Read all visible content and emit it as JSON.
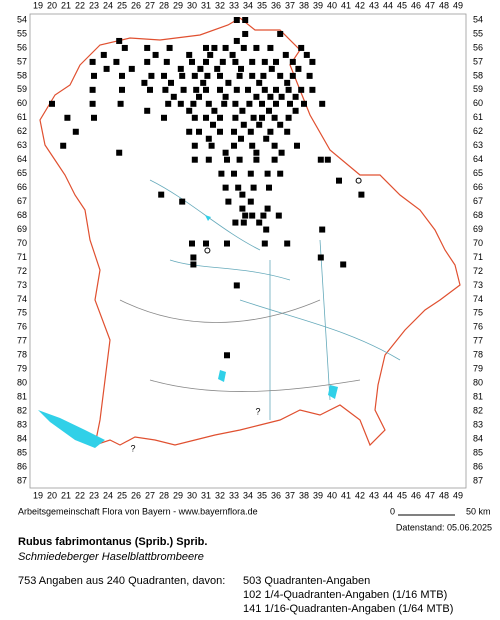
{
  "map": {
    "columns": [
      19,
      20,
      21,
      22,
      23,
      24,
      25,
      26,
      27,
      28,
      29,
      30,
      31,
      32,
      33,
      34,
      35,
      36,
      37,
      38,
      39,
      40,
      41,
      42,
      43,
      44,
      45,
      46,
      47,
      48,
      49
    ],
    "rows": [
      54,
      55,
      56,
      57,
      58,
      59,
      60,
      61,
      62,
      63,
      64,
      65,
      66,
      67,
      68,
      69,
      70,
      71,
      72,
      73,
      74,
      75,
      76,
      77,
      78,
      79,
      80,
      81,
      82,
      83,
      84,
      85,
      86,
      87
    ],
    "records": [
      [
        33.2,
        54
      ],
      [
        33.8,
        54
      ],
      [
        33.8,
        55
      ],
      [
        36.3,
        55
      ],
      [
        24.8,
        55.5
      ],
      [
        33.2,
        55.5
      ],
      [
        25.2,
        56
      ],
      [
        26.8,
        56
      ],
      [
        28.4,
        56
      ],
      [
        31,
        56
      ],
      [
        31.6,
        56
      ],
      [
        32.4,
        56
      ],
      [
        33.7,
        56
      ],
      [
        34.6,
        56
      ],
      [
        35.6,
        56
      ],
      [
        37.8,
        56
      ],
      [
        23.7,
        56.5
      ],
      [
        27.4,
        56.5
      ],
      [
        29.8,
        56.5
      ],
      [
        31.3,
        56.5
      ],
      [
        32.9,
        56.5
      ],
      [
        36.7,
        56.5
      ],
      [
        38.2,
        56.5
      ],
      [
        22.9,
        57
      ],
      [
        24.6,
        57
      ],
      [
        26.8,
        57
      ],
      [
        28.2,
        57
      ],
      [
        30,
        57
      ],
      [
        31,
        57
      ],
      [
        32.2,
        57
      ],
      [
        33.1,
        57
      ],
      [
        34.3,
        57
      ],
      [
        35.2,
        57
      ],
      [
        36,
        57
      ],
      [
        37.2,
        57
      ],
      [
        38.6,
        57
      ],
      [
        23.9,
        57.5
      ],
      [
        25.7,
        57.5
      ],
      [
        29.2,
        57.5
      ],
      [
        30.6,
        57.5
      ],
      [
        31.8,
        57.5
      ],
      [
        33.5,
        57.5
      ],
      [
        35.7,
        57.5
      ],
      [
        37.6,
        57.5
      ],
      [
        23,
        58
      ],
      [
        25,
        58
      ],
      [
        27.1,
        58
      ],
      [
        28,
        58
      ],
      [
        29.3,
        58
      ],
      [
        30.2,
        58
      ],
      [
        31.1,
        58
      ],
      [
        32,
        58
      ],
      [
        33.4,
        58
      ],
      [
        34.3,
        58
      ],
      [
        35.1,
        58
      ],
      [
        36.3,
        58
      ],
      [
        37.2,
        58
      ],
      [
        38.4,
        58
      ],
      [
        26.6,
        58.5
      ],
      [
        28.5,
        58.5
      ],
      [
        30.8,
        58.5
      ],
      [
        32.6,
        58.5
      ],
      [
        34.8,
        58.5
      ],
      [
        36.8,
        58.5
      ],
      [
        22.9,
        59
      ],
      [
        25,
        59
      ],
      [
        27,
        59
      ],
      [
        28.1,
        59
      ],
      [
        29.4,
        59
      ],
      [
        30.3,
        59
      ],
      [
        31,
        59
      ],
      [
        32,
        59
      ],
      [
        33.2,
        59
      ],
      [
        34,
        59
      ],
      [
        35.2,
        59
      ],
      [
        36,
        59
      ],
      [
        36.9,
        59
      ],
      [
        37.8,
        59
      ],
      [
        38.6,
        59
      ],
      [
        28.7,
        59.5
      ],
      [
        30.5,
        59.5
      ],
      [
        32.4,
        59.5
      ],
      [
        34.6,
        59.5
      ],
      [
        35.6,
        59.5
      ],
      [
        36.4,
        59.5
      ],
      [
        37.4,
        59.5
      ],
      [
        20,
        60
      ],
      [
        22.9,
        60
      ],
      [
        24.9,
        60
      ],
      [
        28.3,
        60
      ],
      [
        29.2,
        60
      ],
      [
        30.1,
        60
      ],
      [
        31.2,
        60
      ],
      [
        32.3,
        60
      ],
      [
        33.1,
        60
      ],
      [
        34.1,
        60
      ],
      [
        35,
        60
      ],
      [
        36,
        60
      ],
      [
        37,
        60
      ],
      [
        38,
        60
      ],
      [
        39.3,
        60
      ],
      [
        26.8,
        60.5
      ],
      [
        29.8,
        60.5
      ],
      [
        31.6,
        60.5
      ],
      [
        33.6,
        60.5
      ],
      [
        35.5,
        60.5
      ],
      [
        37.4,
        60.5
      ],
      [
        21.1,
        61
      ],
      [
        23,
        61
      ],
      [
        28,
        61
      ],
      [
        30.2,
        61
      ],
      [
        31,
        61
      ],
      [
        32,
        61
      ],
      [
        33.1,
        61
      ],
      [
        34.4,
        61
      ],
      [
        35,
        61
      ],
      [
        35.9,
        61
      ],
      [
        36.9,
        61
      ],
      [
        31.5,
        61.5
      ],
      [
        33.7,
        61.5
      ],
      [
        34.8,
        61.5
      ],
      [
        36.3,
        61.5
      ],
      [
        21.7,
        62
      ],
      [
        29.8,
        62
      ],
      [
        30.5,
        62
      ],
      [
        32,
        62
      ],
      [
        33,
        62
      ],
      [
        34.2,
        62
      ],
      [
        35.6,
        62
      ],
      [
        36.8,
        62
      ],
      [
        31.2,
        62.5
      ],
      [
        33.5,
        62.5
      ],
      [
        35.3,
        62.5
      ],
      [
        20.8,
        63
      ],
      [
        30.2,
        63
      ],
      [
        31.4,
        63
      ],
      [
        33,
        63
      ],
      [
        34.3,
        63
      ],
      [
        35.9,
        63
      ],
      [
        37.5,
        63
      ],
      [
        24.8,
        63.5
      ],
      [
        32.4,
        63.5
      ],
      [
        34.6,
        63.5
      ],
      [
        36.4,
        63.5
      ],
      [
        30.2,
        64
      ],
      [
        31.2,
        64
      ],
      [
        32.5,
        64
      ],
      [
        33.4,
        64
      ],
      [
        34.6,
        64
      ],
      [
        35.9,
        64
      ],
      [
        39.2,
        64
      ],
      [
        39.7,
        64
      ],
      [
        32.1,
        65
      ],
      [
        33,
        65
      ],
      [
        34.2,
        65
      ],
      [
        35.4,
        65
      ],
      [
        36.3,
        65
      ],
      [
        40.5,
        65.5
      ],
      [
        32.4,
        66
      ],
      [
        33.3,
        66
      ],
      [
        34.4,
        66
      ],
      [
        35.5,
        66
      ],
      [
        27.8,
        66.5
      ],
      [
        33.6,
        66.5
      ],
      [
        42.1,
        66.5
      ],
      [
        29.3,
        67
      ],
      [
        32.6,
        67
      ],
      [
        34.2,
        67
      ],
      [
        33.6,
        67.5
      ],
      [
        35.4,
        67.5
      ],
      [
        33.8,
        68
      ],
      [
        34.3,
        68
      ],
      [
        35.1,
        68
      ],
      [
        36.2,
        68
      ],
      [
        33.1,
        68.5
      ],
      [
        33.7,
        68.5
      ],
      [
        34.8,
        68.5
      ],
      [
        35.3,
        69
      ],
      [
        39.3,
        69
      ],
      [
        30,
        70
      ],
      [
        31,
        70
      ],
      [
        32.5,
        70
      ],
      [
        35.2,
        70
      ],
      [
        36.8,
        70
      ],
      [
        30.1,
        71
      ],
      [
        39.2,
        71
      ],
      [
        40.8,
        71.5
      ],
      [
        30.1,
        71.5
      ],
      [
        33.2,
        73
      ],
      [
        32.5,
        78
      ]
    ],
    "open_records": [
      [
        41.9,
        65.5
      ],
      [
        31.1,
        70.5
      ]
    ],
    "unclear": [
      "?",
      "?"
    ]
  },
  "footer": {
    "credit": "Arbeitsgemeinschaft Flora von Bayern - www.bayernflora.de",
    "scale_start": "0",
    "scale_end": "50 km",
    "date": "Datenstand: 05.06.2025"
  },
  "species": {
    "name": "Rubus fabrimontanus (Sprib.) Sprib.",
    "common_name": "Schmiedeberger Haselblattbrombeere"
  },
  "summary": {
    "total": "753 Angaben aus 240 Quadranten, davon:",
    "lines": [
      "503 Quadranten-Angaben",
      "102 1/4-Quadranten-Angaben (1/16 MTB)",
      "141 1/16-Quadranten-Angaben (1/64 MTB)"
    ]
  }
}
